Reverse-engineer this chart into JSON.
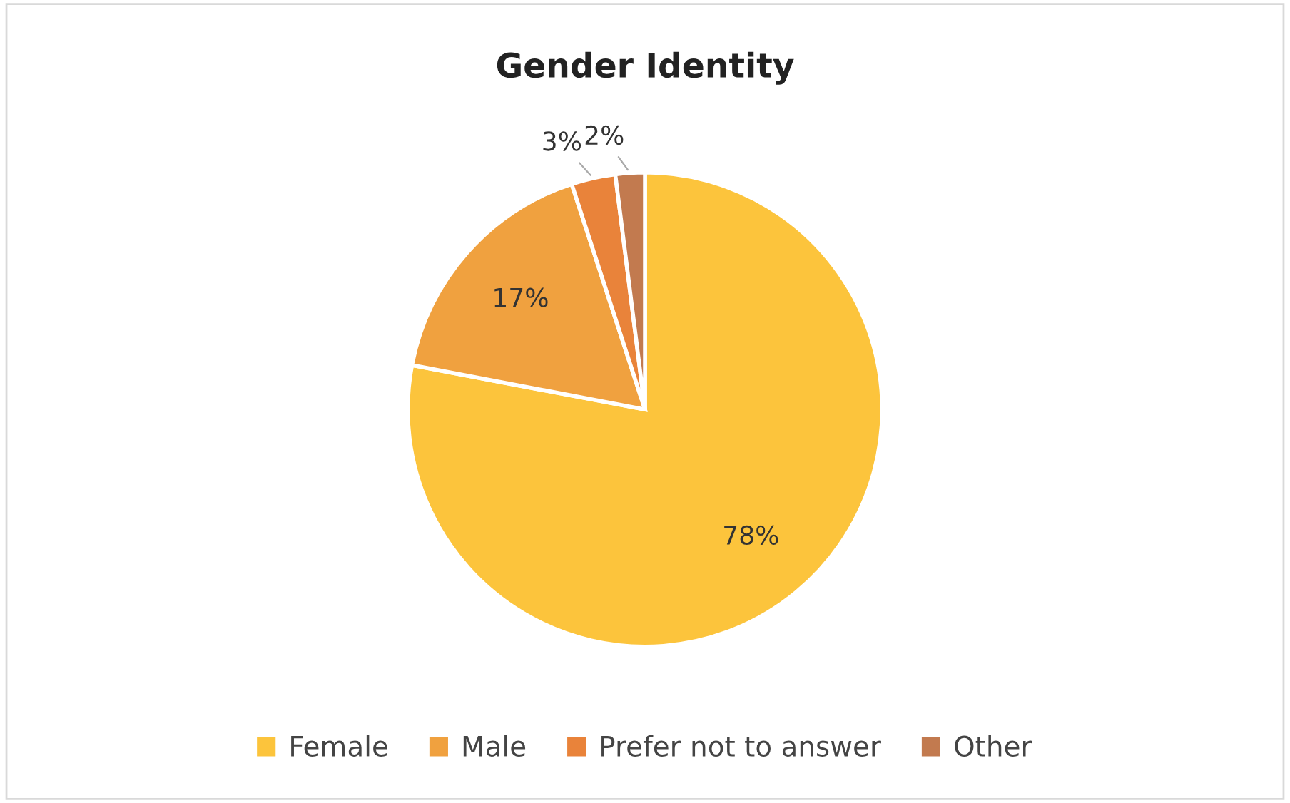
{
  "chart_data": {
    "type": "pie",
    "title": "Gender Identity",
    "categories": [
      "Female",
      "Male",
      "Prefer not to answer",
      "Other"
    ],
    "values": [
      78,
      17,
      3,
      2
    ],
    "colors": [
      "#fcc43c",
      "#f0a13f",
      "#e9833a",
      "#c27a4f"
    ],
    "value_labels": [
      "78%",
      "17%",
      "3%",
      "2%"
    ],
    "legend": "bottom"
  }
}
